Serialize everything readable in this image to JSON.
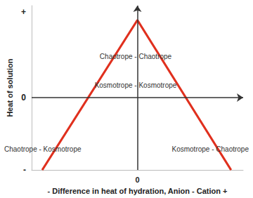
{
  "chart_data": {
    "type": "line",
    "ylabel": "Heat of solution",
    "xlabel": "- Difference in heat of hydration, Anion - Cation +",
    "x": [
      -12.6,
      0,
      12.4
    ],
    "values": [
      -11,
      11.8,
      -11
    ],
    "color": "#e0301e",
    "xlim": [
      -14,
      14
    ],
    "ylim": [
      -11,
      14
    ],
    "xticks": [
      0
    ],
    "yticks": [
      {
        "value": -11,
        "label": "-"
      },
      0,
      {
        "value": 13,
        "label": "+"
      }
    ],
    "grid": false,
    "annotations": [
      "Chaotrope - Chaotrope",
      "Kosmotrope - Kosmotrope",
      "Chaotrope - Kosmotrope",
      "Kosmotrope - Chaotrope"
    ]
  }
}
